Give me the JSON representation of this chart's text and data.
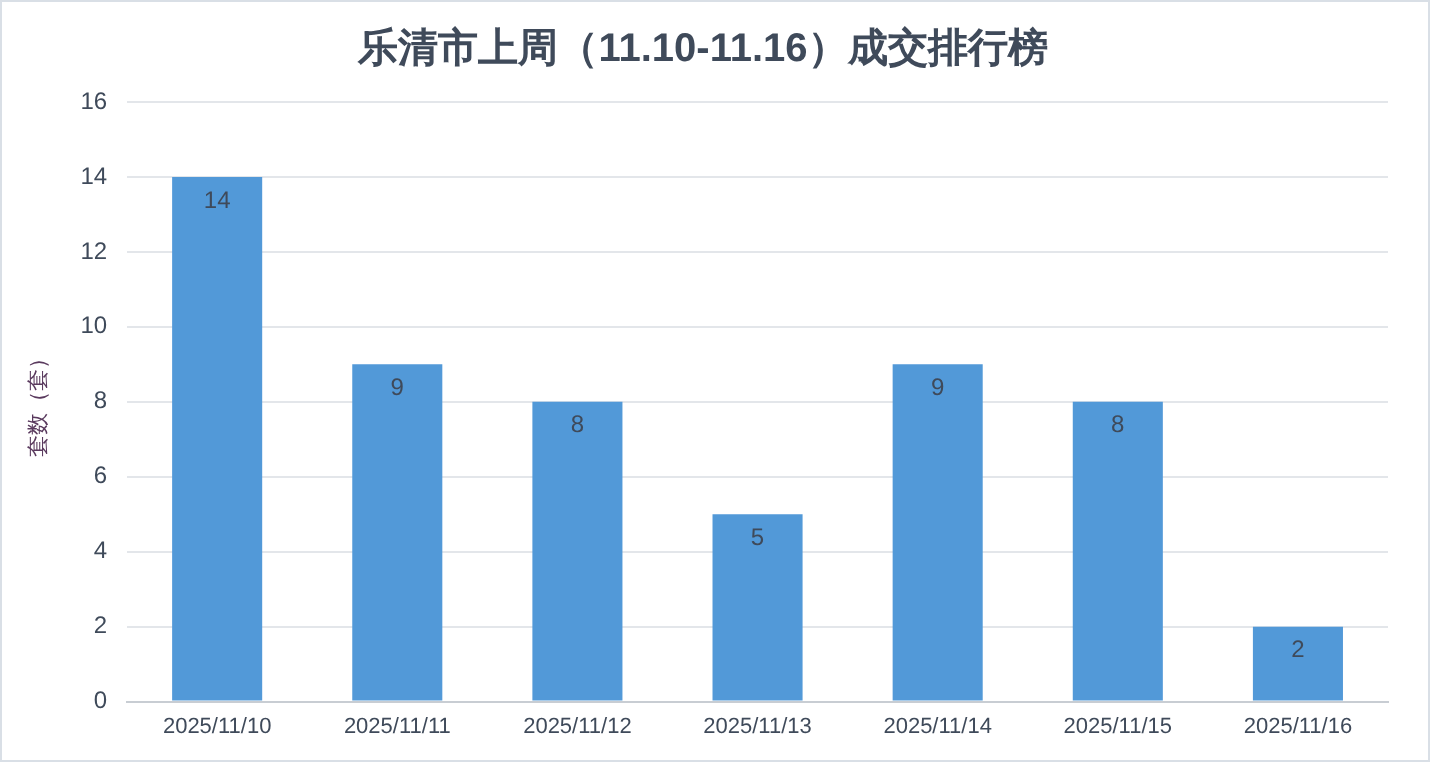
{
  "chart_data": {
    "type": "bar",
    "title": "乐清市上周（11.10-11.16）成交排行榜",
    "ylabel": "套数（套）",
    "categories": [
      "2025/11/10",
      "2025/11/11",
      "2025/11/12",
      "2025/11/13",
      "2025/11/14",
      "2025/11/15",
      "2025/11/16"
    ],
    "values": [
      14,
      9,
      8,
      5,
      9,
      8,
      2
    ],
    "color": "#5299d8",
    "ylim": [
      0,
      16
    ],
    "yticks": [
      0,
      2,
      4,
      6,
      8,
      10,
      12,
      14,
      16
    ],
    "grid": "y",
    "data_labels": true,
    "legend": false
  }
}
